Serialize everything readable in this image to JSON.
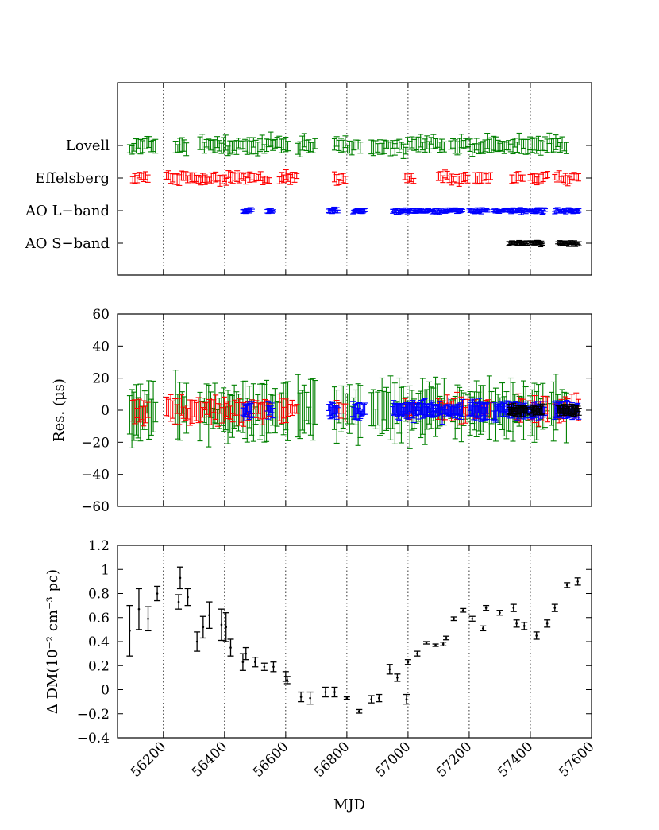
{
  "chart_data": [
    {
      "type": "scatter",
      "panel": "top",
      "xlim": [
        56050,
        57600
      ],
      "xticks": [
        56200,
        56400,
        56600,
        56800,
        57000,
        57200,
        57400,
        57600
      ],
      "grid": "vertical dotted at x ticks",
      "yticklabels": [
        "Lovell",
        "Effelsberg",
        "AO L−band",
        "AO S−band"
      ],
      "series": [
        {
          "name": "Lovell",
          "color": "#008000",
          "x_ranges": [
            [
              56090,
              56180
            ],
            [
              56240,
              56280
            ],
            [
              56320,
              56610
            ],
            [
              56640,
              56700
            ],
            [
              56760,
              56850
            ],
            [
              56880,
              57120
            ],
            [
              57140,
              57520
            ]
          ]
        },
        {
          "name": "Effelsberg",
          "color": "#ff0000",
          "x_ranges": [
            [
              56100,
              56150
            ],
            [
              56210,
              56550
            ],
            [
              56580,
              56640
            ],
            [
              56760,
              56800
            ],
            [
              56990,
              57020
            ],
            [
              57100,
              57150
            ],
            [
              57160,
              57200
            ],
            [
              57220,
              57270
            ],
            [
              57340,
              57380
            ],
            [
              57400,
              57460
            ],
            [
              57480,
              57560
            ]
          ]
        },
        {
          "name": "AO L−band",
          "color": "#0000ff",
          "x_ranges": [
            [
              56460,
              56490
            ],
            [
              56540,
              56560
            ],
            [
              56740,
              56770
            ],
            [
              56820,
              56860
            ],
            [
              56950,
              57180
            ],
            [
              57200,
              57260
            ],
            [
              57280,
              57450
            ],
            [
              57480,
              57560
            ]
          ]
        },
        {
          "name": "AO S−band",
          "color": "#000000",
          "x_ranges": [
            [
              57330,
              57390
            ],
            [
              57400,
              57440
            ],
            [
              57490,
              57560
            ]
          ]
        }
      ]
    },
    {
      "type": "scatter",
      "panel": "middle",
      "ylabel": "Res. (μs)",
      "xlim": [
        56050,
        57600
      ],
      "ylim": [
        -60,
        60
      ],
      "yticks": [
        -60,
        -40,
        -20,
        0,
        20,
        40,
        60
      ],
      "xticks": [
        56200,
        56400,
        56600,
        56800,
        57000,
        57200,
        57400,
        57600
      ],
      "grid": "vertical dotted at x ticks",
      "series": [
        {
          "name": "Lovell",
          "color": "#008000",
          "typical_error": 10,
          "residual_scatter": 5
        },
        {
          "name": "Effelsberg",
          "color": "#ff0000",
          "typical_error": 5,
          "residual_scatter": 3
        },
        {
          "name": "AO L−band",
          "color": "#0000ff",
          "typical_error": 4,
          "residual_scatter": 2
        },
        {
          "name": "AO S−band",
          "color": "#000000",
          "typical_error": 3,
          "residual_scatter": 1
        }
      ]
    },
    {
      "type": "scatter",
      "panel": "bottom",
      "xlabel": "MJD",
      "ylabel": "Δ DM(10⁻² cm⁻³ pc)",
      "xlim": [
        56050,
        57600
      ],
      "ylim": [
        -0.4,
        1.2
      ],
      "yticks": [
        -0.4,
        -0.2,
        0,
        0.2,
        0.4,
        0.6,
        0.8,
        1,
        1.2
      ],
      "ytick_labels": [
        "−0.4",
        "−0.2",
        "0",
        "0.2",
        "0.4",
        "0.6",
        "0.8",
        "1",
        "1.2"
      ],
      "xticks": [
        56200,
        56400,
        56600,
        56800,
        57000,
        57200,
        57400,
        57600
      ],
      "grid": "vertical dotted at x ticks",
      "points": [
        {
          "x": 56090,
          "y": 0.49,
          "err": 0.21
        },
        {
          "x": 56120,
          "y": 0.67,
          "err": 0.17
        },
        {
          "x": 56150,
          "y": 0.59,
          "err": 0.1
        },
        {
          "x": 56180,
          "y": 0.8,
          "err": 0.06
        },
        {
          "x": 56250,
          "y": 0.73,
          "err": 0.06
        },
        {
          "x": 56255,
          "y": 0.93,
          "err": 0.09
        },
        {
          "x": 56280,
          "y": 0.77,
          "err": 0.07
        },
        {
          "x": 56310,
          "y": 0.4,
          "err": 0.08
        },
        {
          "x": 56330,
          "y": 0.52,
          "err": 0.09
        },
        {
          "x": 56350,
          "y": 0.62,
          "err": 0.11
        },
        {
          "x": 56390,
          "y": 0.54,
          "err": 0.13
        },
        {
          "x": 56405,
          "y": 0.52,
          "err": 0.12
        },
        {
          "x": 56420,
          "y": 0.35,
          "err": 0.07
        },
        {
          "x": 56460,
          "y": 0.23,
          "err": 0.07
        },
        {
          "x": 56470,
          "y": 0.3,
          "err": 0.05
        },
        {
          "x": 56500,
          "y": 0.23,
          "err": 0.04
        },
        {
          "x": 56530,
          "y": 0.19,
          "err": 0.03
        },
        {
          "x": 56560,
          "y": 0.19,
          "err": 0.04
        },
        {
          "x": 56600,
          "y": 0.11,
          "err": 0.04
        },
        {
          "x": 56605,
          "y": 0.08,
          "err": 0.03
        },
        {
          "x": 56650,
          "y": -0.06,
          "err": 0.04
        },
        {
          "x": 56680,
          "y": -0.07,
          "err": 0.05
        },
        {
          "x": 56730,
          "y": -0.02,
          "err": 0.04
        },
        {
          "x": 56760,
          "y": -0.02,
          "err": 0.04
        },
        {
          "x": 56800,
          "y": -0.07,
          "err": 0.01
        },
        {
          "x": 56840,
          "y": -0.18,
          "err": 0.015
        },
        {
          "x": 56880,
          "y": -0.08,
          "err": 0.03
        },
        {
          "x": 56905,
          "y": -0.07,
          "err": 0.03
        },
        {
          "x": 56940,
          "y": 0.17,
          "err": 0.04
        },
        {
          "x": 56965,
          "y": 0.1,
          "err": 0.03
        },
        {
          "x": 56995,
          "y": -0.08,
          "err": 0.04
        },
        {
          "x": 57000,
          "y": 0.23,
          "err": 0.02
        },
        {
          "x": 57030,
          "y": 0.3,
          "err": 0.02
        },
        {
          "x": 57060,
          "y": 0.39,
          "err": 0.01
        },
        {
          "x": 57090,
          "y": 0.37,
          "err": 0.01
        },
        {
          "x": 57115,
          "y": 0.38,
          "err": 0.015
        },
        {
          "x": 57125,
          "y": 0.43,
          "err": 0.015
        },
        {
          "x": 57150,
          "y": 0.59,
          "err": 0.015
        },
        {
          "x": 57180,
          "y": 0.66,
          "err": 0.015
        },
        {
          "x": 57210,
          "y": 0.59,
          "err": 0.02
        },
        {
          "x": 57245,
          "y": 0.51,
          "err": 0.02
        },
        {
          "x": 57255,
          "y": 0.68,
          "err": 0.02
        },
        {
          "x": 57300,
          "y": 0.64,
          "err": 0.02
        },
        {
          "x": 57345,
          "y": 0.68,
          "err": 0.03
        },
        {
          "x": 57355,
          "y": 0.55,
          "err": 0.03
        },
        {
          "x": 57380,
          "y": 0.53,
          "err": 0.03
        },
        {
          "x": 57420,
          "y": 0.45,
          "err": 0.03
        },
        {
          "x": 57455,
          "y": 0.55,
          "err": 0.03
        },
        {
          "x": 57480,
          "y": 0.68,
          "err": 0.03
        },
        {
          "x": 57520,
          "y": 0.87,
          "err": 0.02
        },
        {
          "x": 57555,
          "y": 0.9,
          "err": 0.03
        }
      ]
    }
  ]
}
